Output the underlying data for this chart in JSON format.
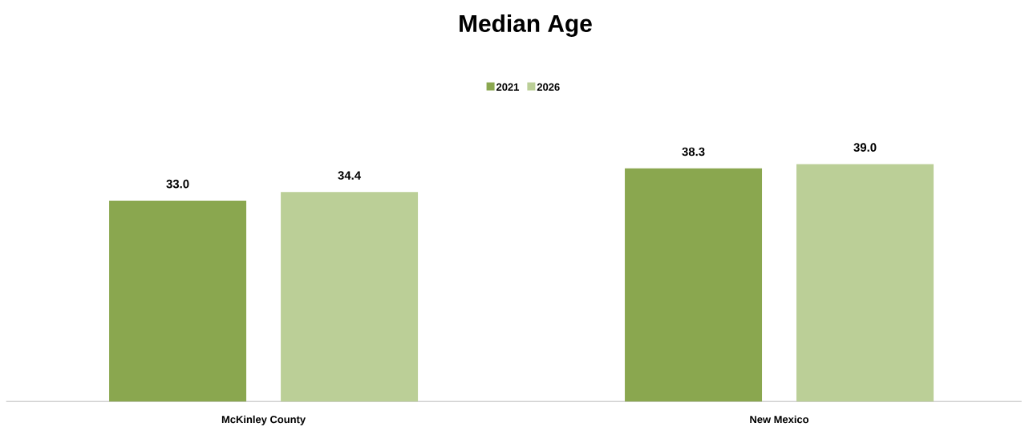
{
  "chart_data": {
    "type": "bar",
    "title": "Median Age",
    "categories": [
      "McKinley County",
      "New Mexico"
    ],
    "series": [
      {
        "name": "2021",
        "color": "#8aa74f",
        "values": [
          33.0,
          38.3
        ],
        "value_labels": [
          "33.0",
          "38.3"
        ]
      },
      {
        "name": "2026",
        "color": "#bbcf97",
        "values": [
          34.4,
          39.0
        ],
        "value_labels": [
          "34.4",
          "39.0"
        ]
      }
    ],
    "legend": "top"
  }
}
